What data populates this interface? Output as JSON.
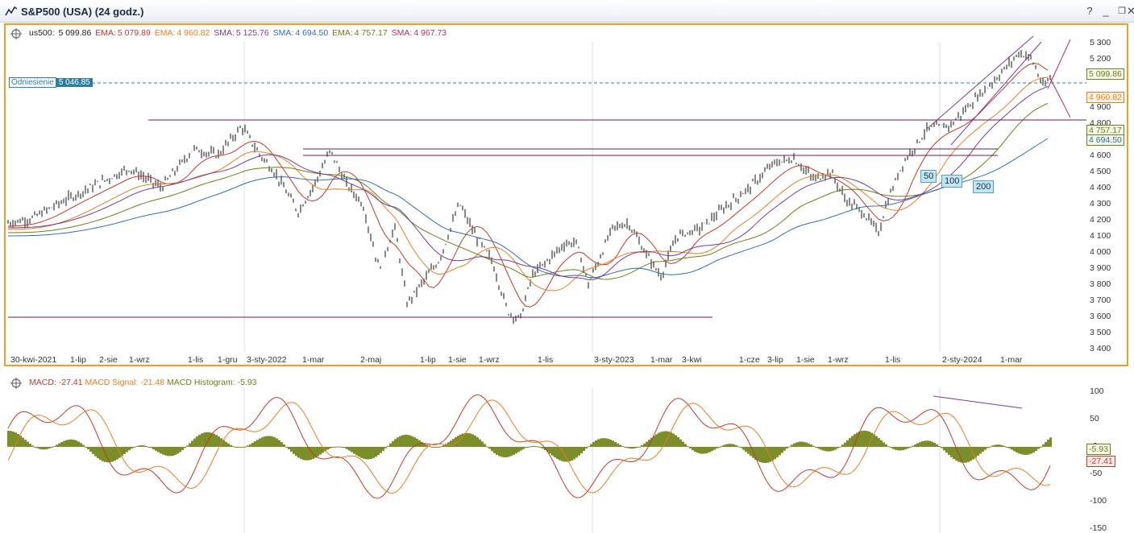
{
  "window": {
    "title": "S&P500 (USA) (24 godz.)",
    "icon": "chart-line-icon",
    "buttons": [
      "help-icon",
      "minimize-icon",
      "restore-icon",
      "close-icon"
    ]
  },
  "legend_main": {
    "symbol": "us500:",
    "symbol_val": "5 099.86",
    "items": [
      {
        "name": "EMA:",
        "value": "5 079.89",
        "color": "#c0392b"
      },
      {
        "name": "EMA:",
        "value": "4 960.82",
        "color": "#e67e22"
      },
      {
        "name": "SMA:",
        "value": "5 125.76",
        "color": "#7a3d8f"
      },
      {
        "name": "SMA:",
        "value": "4 694.50",
        "color": "#2e6db4"
      },
      {
        "name": "EMA:",
        "value": "4 757.17",
        "color": "#6b7f1a"
      },
      {
        "name": "SMA:",
        "value": "4 967.73",
        "color": "#b03060"
      }
    ]
  },
  "reference": {
    "label": "Odniesienie",
    "value": "5 046.85"
  },
  "price_axis": [
    "5 300",
    "5 200",
    "4 900",
    "4 800",
    "4 700",
    "4 600",
    "4 500",
    "4 400",
    "4 300",
    "4 200",
    "4 100",
    "4 000",
    "3 900",
    "3 800",
    "3 700",
    "3 600",
    "3 500",
    "3 400"
  ],
  "value_boxes": [
    {
      "text": "5 099.86",
      "color": "#6b7f1a"
    },
    {
      "text": "4 960.82",
      "color": "#e67e22"
    },
    {
      "text": "4 757.17",
      "color": "#6b7f1a"
    },
    {
      "text": "4 694.50",
      "color": "#2e6db4"
    }
  ],
  "ma_badges": [
    "50",
    "100",
    "200"
  ],
  "x_axis": [
    "30-kwi-2021",
    "1-lip",
    "2-sie",
    "1-wrz",
    "1-lis",
    "1-gru",
    "3-sty-2022",
    "1-mar",
    "2-maj",
    "1-lip",
    "1-sie",
    "1-wrz",
    "1-lis",
    "3-sty-2023",
    "1-mar",
    "3-kwi",
    "1-cze",
    "3-lip",
    "1-sie",
    "1-wrz",
    "1-lis",
    "2-sty-2024",
    "1-mar"
  ],
  "macd_legend": [
    {
      "name": "MACD:",
      "value": "-27.41",
      "color": "#c0392b"
    },
    {
      "name": "MACD Signal:",
      "value": "-21.48",
      "color": "#e67e22"
    },
    {
      "name": "MACD Histogram:",
      "value": "-5.93",
      "color": "#6b7f1a"
    }
  ],
  "macd_axis": [
    "100",
    "50",
    "0",
    "-50",
    "-100",
    "-150"
  ],
  "macd_boxes": [
    {
      "text": "-5.93",
      "color": "#6b7f1a"
    },
    {
      "text": "-27.41",
      "color": "#c0392b"
    }
  ]
}
